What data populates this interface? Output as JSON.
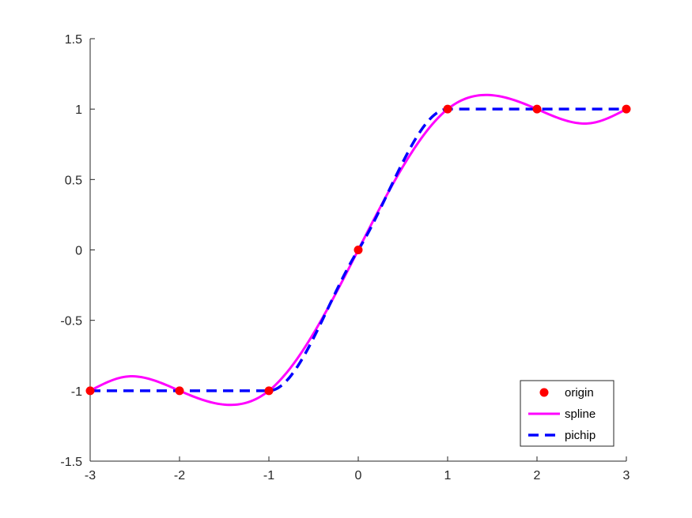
{
  "chart_data": {
    "type": "line",
    "title": "",
    "xlabel": "",
    "ylabel": "",
    "xlim": [
      -3,
      3
    ],
    "ylim": [
      -1.5,
      1.5
    ],
    "xticks": [
      "-3",
      "-2",
      "-1",
      "0",
      "1",
      "2",
      "3"
    ],
    "yticks": [
      "-1.5",
      "-1",
      "-0.5",
      "0",
      "0.5",
      "1",
      "1.5"
    ],
    "grid": false,
    "legend_position": "bottom-right",
    "series": [
      {
        "name": "origin",
        "style": "markers",
        "color": "#ff0000",
        "x": [
          -3,
          -2,
          -1,
          0,
          1,
          2,
          3
        ],
        "y": [
          -1,
          -1,
          -1,
          0,
          1,
          1,
          1
        ]
      },
      {
        "name": "spline",
        "style": "solid",
        "color": "#ff00ff",
        "x": [
          -3,
          -2.6,
          -2,
          -1.4,
          -1,
          0,
          1,
          1.4,
          2,
          2.6,
          3
        ],
        "y": [
          -1,
          -0.9,
          -1,
          -1.1,
          -1,
          0,
          1,
          1.1,
          1,
          0.9,
          1
        ]
      },
      {
        "name": "pichip",
        "style": "dashed",
        "color": "#0000ff",
        "x": [
          -3,
          -2,
          -1,
          0,
          1,
          2,
          3
        ],
        "y": [
          -1,
          -1,
          -1,
          0,
          1,
          1,
          1
        ]
      }
    ]
  }
}
